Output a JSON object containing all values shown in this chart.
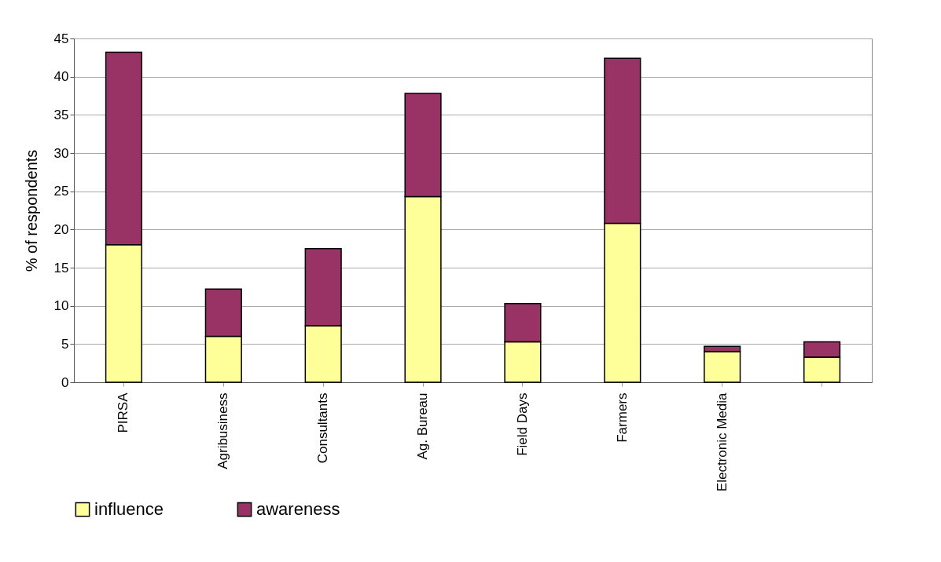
{
  "chart_data": {
    "type": "bar",
    "stacked": true,
    "ylabel": "% of respondents",
    "categories": [
      "PIRSA",
      "Agribusiness",
      "Consultants",
      "Ag. Bureau",
      "Field Days",
      "Farmers",
      "Electronic Media",
      null
    ],
    "series": [
      {
        "name": "influence",
        "color": "#ffff99",
        "values": [
          18,
          6,
          7.4,
          24.3,
          5.3,
          20.8,
          4,
          3.3
        ]
      },
      {
        "name": "awareness",
        "color": "#993366",
        "values": [
          25.2,
          6.2,
          10.1,
          13.5,
          5,
          21.6,
          0.7,
          2
        ]
      }
    ],
    "ylim": [
      0,
      45
    ],
    "yticks": [
      0,
      5,
      10,
      15,
      20,
      25,
      30,
      35,
      40,
      45
    ],
    "grid": "y",
    "legend": "bottom"
  }
}
